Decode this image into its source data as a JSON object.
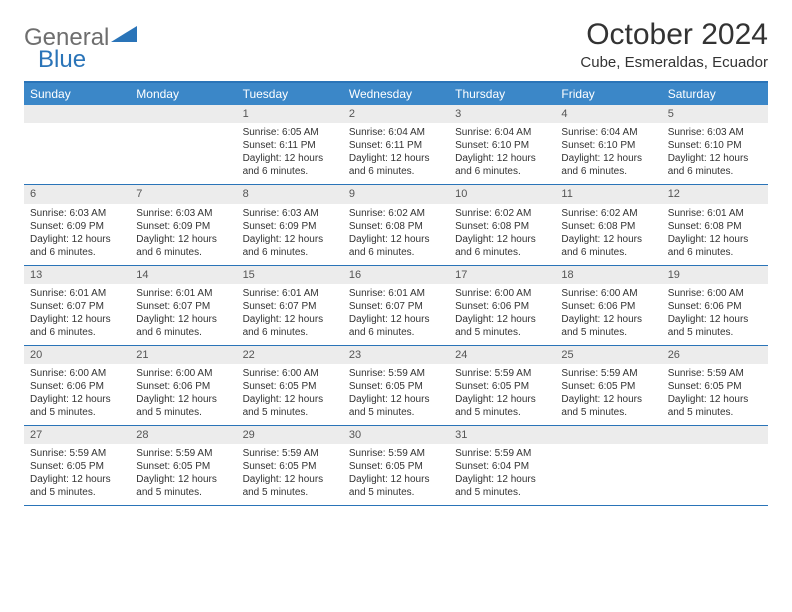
{
  "logo": {
    "gray": "General",
    "blue": "Blue"
  },
  "title": "October 2024",
  "location": "Cube, Esmeraldas, Ecuador",
  "colors": {
    "header_bg": "#3b87c8",
    "border": "#2a74b8",
    "daynum_bg": "#ececec",
    "logo_gray": "#6e6e6e",
    "logo_blue": "#2a74b8"
  },
  "daynames": [
    "Sunday",
    "Monday",
    "Tuesday",
    "Wednesday",
    "Thursday",
    "Friday",
    "Saturday"
  ],
  "weeks": [
    [
      null,
      null,
      {
        "n": "1",
        "sr": "6:05 AM",
        "ss": "6:11 PM",
        "dl": "12 hours and 6 minutes."
      },
      {
        "n": "2",
        "sr": "6:04 AM",
        "ss": "6:11 PM",
        "dl": "12 hours and 6 minutes."
      },
      {
        "n": "3",
        "sr": "6:04 AM",
        "ss": "6:10 PM",
        "dl": "12 hours and 6 minutes."
      },
      {
        "n": "4",
        "sr": "6:04 AM",
        "ss": "6:10 PM",
        "dl": "12 hours and 6 minutes."
      },
      {
        "n": "5",
        "sr": "6:03 AM",
        "ss": "6:10 PM",
        "dl": "12 hours and 6 minutes."
      }
    ],
    [
      {
        "n": "6",
        "sr": "6:03 AM",
        "ss": "6:09 PM",
        "dl": "12 hours and 6 minutes."
      },
      {
        "n": "7",
        "sr": "6:03 AM",
        "ss": "6:09 PM",
        "dl": "12 hours and 6 minutes."
      },
      {
        "n": "8",
        "sr": "6:03 AM",
        "ss": "6:09 PM",
        "dl": "12 hours and 6 minutes."
      },
      {
        "n": "9",
        "sr": "6:02 AM",
        "ss": "6:08 PM",
        "dl": "12 hours and 6 minutes."
      },
      {
        "n": "10",
        "sr": "6:02 AM",
        "ss": "6:08 PM",
        "dl": "12 hours and 6 minutes."
      },
      {
        "n": "11",
        "sr": "6:02 AM",
        "ss": "6:08 PM",
        "dl": "12 hours and 6 minutes."
      },
      {
        "n": "12",
        "sr": "6:01 AM",
        "ss": "6:08 PM",
        "dl": "12 hours and 6 minutes."
      }
    ],
    [
      {
        "n": "13",
        "sr": "6:01 AM",
        "ss": "6:07 PM",
        "dl": "12 hours and 6 minutes."
      },
      {
        "n": "14",
        "sr": "6:01 AM",
        "ss": "6:07 PM",
        "dl": "12 hours and 6 minutes."
      },
      {
        "n": "15",
        "sr": "6:01 AM",
        "ss": "6:07 PM",
        "dl": "12 hours and 6 minutes."
      },
      {
        "n": "16",
        "sr": "6:01 AM",
        "ss": "6:07 PM",
        "dl": "12 hours and 6 minutes."
      },
      {
        "n": "17",
        "sr": "6:00 AM",
        "ss": "6:06 PM",
        "dl": "12 hours and 5 minutes."
      },
      {
        "n": "18",
        "sr": "6:00 AM",
        "ss": "6:06 PM",
        "dl": "12 hours and 5 minutes."
      },
      {
        "n": "19",
        "sr": "6:00 AM",
        "ss": "6:06 PM",
        "dl": "12 hours and 5 minutes."
      }
    ],
    [
      {
        "n": "20",
        "sr": "6:00 AM",
        "ss": "6:06 PM",
        "dl": "12 hours and 5 minutes."
      },
      {
        "n": "21",
        "sr": "6:00 AM",
        "ss": "6:06 PM",
        "dl": "12 hours and 5 minutes."
      },
      {
        "n": "22",
        "sr": "6:00 AM",
        "ss": "6:05 PM",
        "dl": "12 hours and 5 minutes."
      },
      {
        "n": "23",
        "sr": "5:59 AM",
        "ss": "6:05 PM",
        "dl": "12 hours and 5 minutes."
      },
      {
        "n": "24",
        "sr": "5:59 AM",
        "ss": "6:05 PM",
        "dl": "12 hours and 5 minutes."
      },
      {
        "n": "25",
        "sr": "5:59 AM",
        "ss": "6:05 PM",
        "dl": "12 hours and 5 minutes."
      },
      {
        "n": "26",
        "sr": "5:59 AM",
        "ss": "6:05 PM",
        "dl": "12 hours and 5 minutes."
      }
    ],
    [
      {
        "n": "27",
        "sr": "5:59 AM",
        "ss": "6:05 PM",
        "dl": "12 hours and 5 minutes."
      },
      {
        "n": "28",
        "sr": "5:59 AM",
        "ss": "6:05 PM",
        "dl": "12 hours and 5 minutes."
      },
      {
        "n": "29",
        "sr": "5:59 AM",
        "ss": "6:05 PM",
        "dl": "12 hours and 5 minutes."
      },
      {
        "n": "30",
        "sr": "5:59 AM",
        "ss": "6:05 PM",
        "dl": "12 hours and 5 minutes."
      },
      {
        "n": "31",
        "sr": "5:59 AM",
        "ss": "6:04 PM",
        "dl": "12 hours and 5 minutes."
      },
      null,
      null
    ]
  ],
  "labels": {
    "sunrise": "Sunrise: ",
    "sunset": "Sunset: ",
    "daylight": "Daylight: "
  }
}
